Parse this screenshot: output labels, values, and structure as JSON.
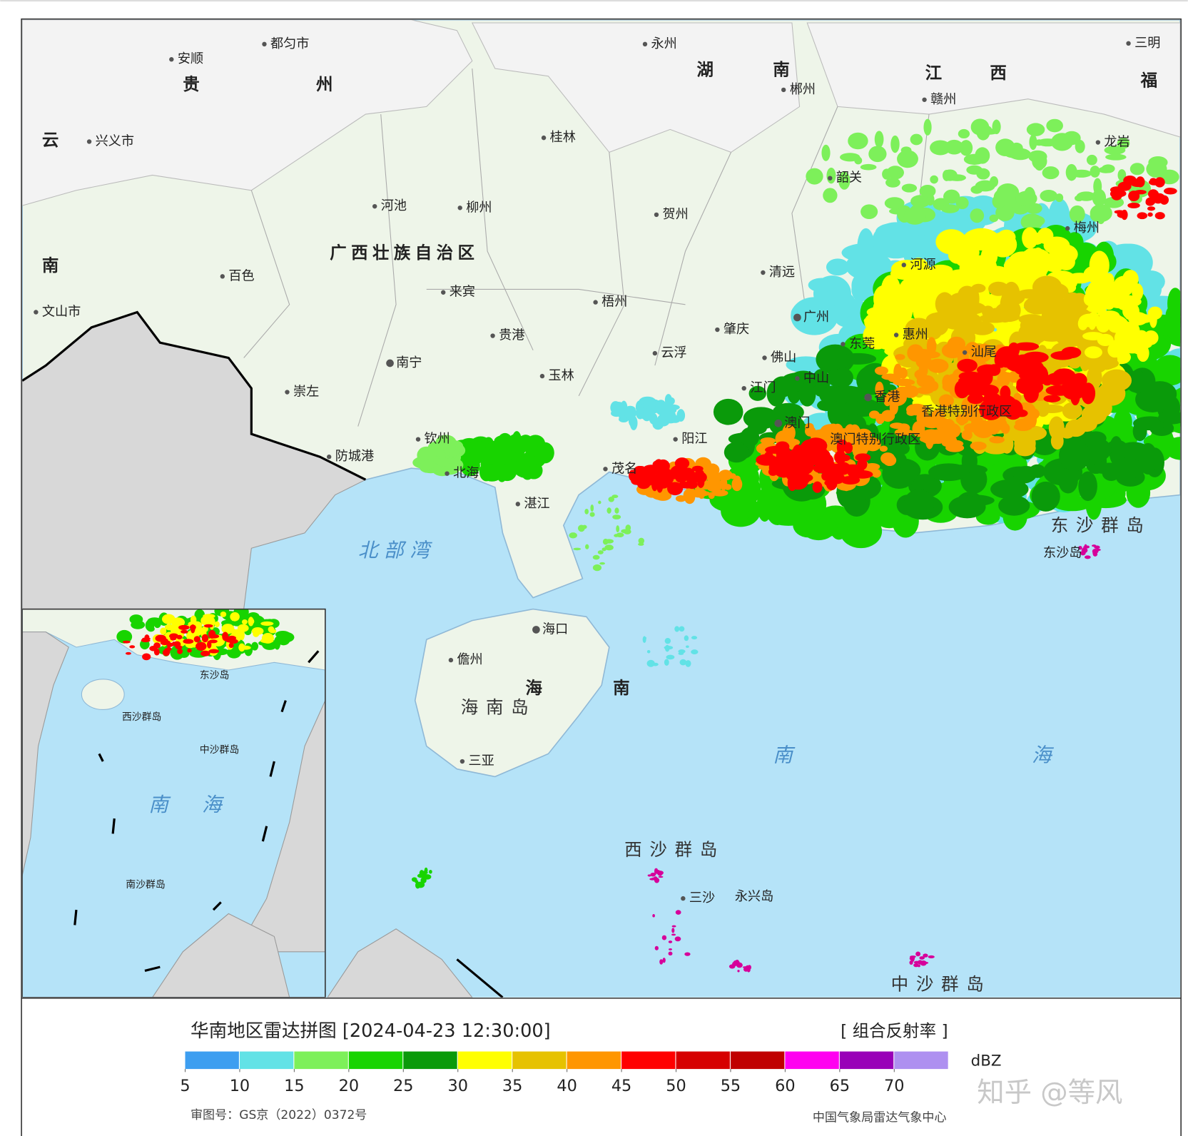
{
  "map": {
    "labels": [
      "安顺",
      "都匀市",
      "贵",
      "州",
      "云",
      "兴义市",
      "永州",
      "湖",
      "南",
      "郴州",
      "江",
      "西",
      "赣州",
      "三明",
      "福",
      "龙岩",
      "桂林",
      "韶关",
      "河池",
      "柳州",
      "贺州",
      "广西壮族自治区",
      "南",
      "百色",
      "文山市",
      "来宾",
      "梧州",
      "清远",
      "河源",
      "梅州",
      "广州",
      "肇庆",
      "贵港",
      "云浮",
      "南宁",
      "佛山",
      "东莞",
      "惠州",
      "汕尾",
      "玉林",
      "崇左",
      "江门",
      "中山",
      "香港",
      "香港特别行政区",
      "澳门",
      "澳门特别行政区",
      "钦州",
      "阳江",
      "防城港",
      "北海",
      "茂名",
      "湛江",
      "北部湾",
      "东沙群岛",
      "东沙岛",
      "海口",
      "儋州",
      "海南岛",
      "海",
      "南",
      "三亚",
      "南",
      "海",
      "西沙群岛",
      "三沙",
      "永兴岛",
      "中沙群岛",
      "南",
      "海",
      "东沙岛",
      "西沙群岛",
      "中沙群岛",
      "南沙群岛"
    ]
  },
  "legend": {
    "title": "华南地区雷达拼图 [2024-04-23 12:30:00]",
    "product": "[ 组合反射率 ]",
    "unit": "dBZ",
    "ticks": [
      5,
      10,
      15,
      20,
      25,
      30,
      35,
      40,
      45,
      50,
      55,
      60,
      65,
      70
    ],
    "colors": [
      "#3d9ef0",
      "#62e2e6",
      "#7df05a",
      "#18d400",
      "#0a9a0a",
      "#ffff00",
      "#e6c200",
      "#ff9600",
      "#ff0000",
      "#d60000",
      "#c00000",
      "#ff00f0",
      "#9900b8",
      "#ae90f0"
    ]
  },
  "footer": {
    "approval": "审图号：GS京（2022）0372号",
    "source": "中国气象局雷达气象中心"
  },
  "watermark": "知乎 @等风"
}
